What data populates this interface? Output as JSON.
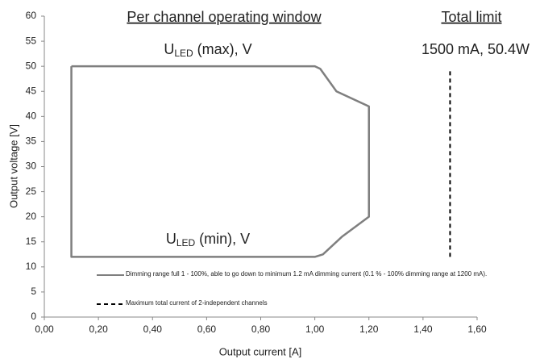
{
  "chart_data": {
    "type": "line",
    "titles": [
      "Per channel operating window",
      "Total limit"
    ],
    "annotations": [
      {
        "text": "U",
        "sub": "LED",
        "rest": " (max), V"
      },
      {
        "text": "U",
        "sub": "LED",
        "rest": " (min), V"
      },
      {
        "text": "1500 mA, 50.4W"
      }
    ],
    "xlabel": "Output current [A]",
    "ylabel": "Output voltage [V]",
    "xlim": [
      0,
      1.6
    ],
    "xticks": [
      {
        "value": 0,
        "label": "0,00"
      },
      {
        "value": 0.2,
        "label": "0,20"
      },
      {
        "value": 0.4,
        "label": "0,40"
      },
      {
        "value": 0.6,
        "label": "0,60"
      },
      {
        "value": 0.8,
        "label": "0,80"
      },
      {
        "value": 1.0,
        "label": "1,00"
      },
      {
        "value": 1.2,
        "label": "1,20"
      },
      {
        "value": 1.4,
        "label": "1,40"
      },
      {
        "value": 1.6,
        "label": "1,60"
      }
    ],
    "ylim": [
      0,
      60
    ],
    "yticks": [
      0,
      5,
      10,
      15,
      20,
      25,
      30,
      35,
      40,
      45,
      50,
      55,
      60
    ],
    "grid": false,
    "series": [
      {
        "name": "Dimming range full 1 - 100%, able to go down to minimum 1.2 mA dimming current (0.1 % - 100% dimming range at 1200 mA).",
        "color": "#7f7f7f",
        "dash": false,
        "x": [
          0.1,
          1.0,
          1.02,
          1.08,
          1.2,
          1.2,
          1.1,
          1.03,
          1.0,
          0.1,
          0.1
        ],
        "values": [
          50,
          50,
          49.5,
          45,
          42,
          20,
          16,
          12.5,
          12,
          12,
          50
        ]
      },
      {
        "name": "Maximum total current of 2-independent channels",
        "color": "#000000",
        "dash": true,
        "x": [
          1.5,
          1.5
        ],
        "values": [
          12,
          49
        ]
      }
    ]
  }
}
